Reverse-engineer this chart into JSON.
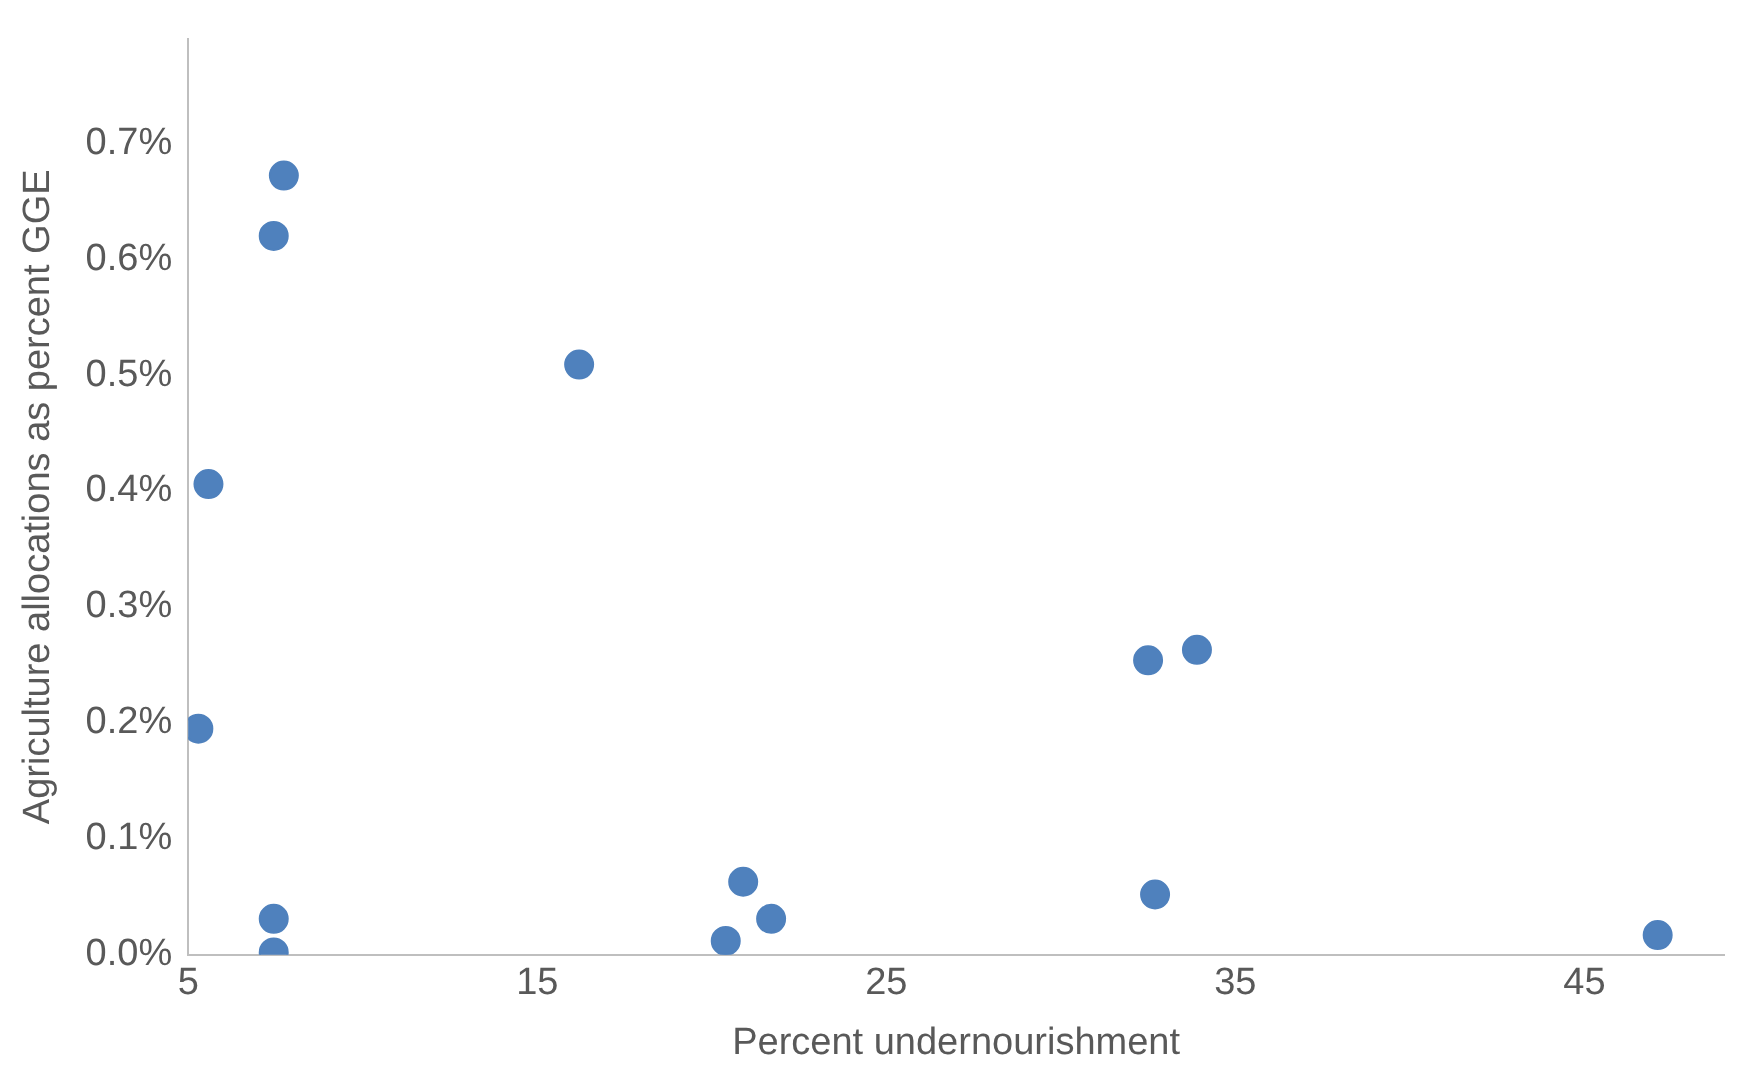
{
  "chart_data": {
    "type": "scatter",
    "xlabel": "Percent undernourishment",
    "ylabel": "Agriculture allocations as percent GGE",
    "x": [
      7.74,
      7.45,
      16.2,
      5.58,
      5.29,
      7.45,
      7.45,
      20.9,
      21.7,
      20.4,
      32.5,
      33.9,
      32.7,
      47.1
    ],
    "series": [
      {
        "color": "#4f81bd",
        "values": [
          0.672,
          0.62,
          0.509,
          0.406,
          0.195,
          0.031,
          0.002,
          0.063,
          0.031,
          0.012,
          0.254,
          0.263,
          0.052,
          0.017
        ]
      }
    ],
    "xlim": [
      5,
      49
    ],
    "xticks": [
      5,
      15,
      25,
      35,
      45
    ],
    "ylim": [
      0,
      0.79
    ],
    "yticks": [
      {
        "value": 0,
        "label": "0.0%"
      },
      {
        "value": 0.1,
        "label": "0.1%"
      },
      {
        "value": 0.2,
        "label": "0.2%"
      },
      {
        "value": 0.3,
        "label": "0.3%"
      },
      {
        "value": 0.4,
        "label": "0.4%"
      },
      {
        "value": 0.5,
        "label": "0.5%"
      },
      {
        "value": 0.6,
        "label": "0.6%"
      },
      {
        "value": 0.7,
        "label": "0.7%"
      }
    ],
    "marker": "circle"
  }
}
